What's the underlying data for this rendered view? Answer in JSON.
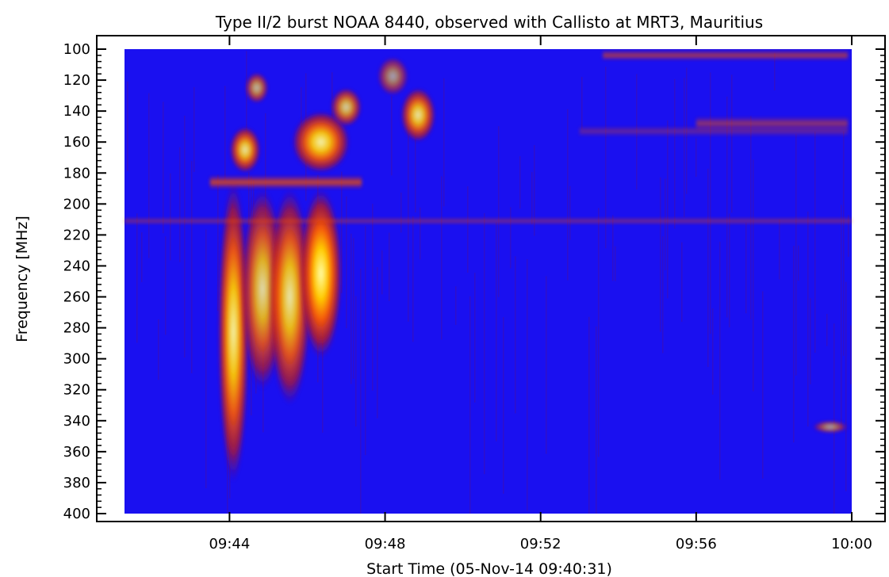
{
  "chart_data": {
    "type": "heatmap",
    "title": "Type II/2 burst NOAA 8440, observed with Callisto at MRT3, Mauritius",
    "xlabel": "Start Time (05-Nov-14 09:40:31)",
    "ylabel": "Frequency [MHz]",
    "x_range_minutes": [
      1.3,
      20.0
    ],
    "x_ticks": [
      {
        "minute": 4,
        "label": "09:44"
      },
      {
        "minute": 8,
        "label": "09:48"
      },
      {
        "minute": 12,
        "label": "09:52"
      },
      {
        "minute": 16,
        "label": "09:56"
      },
      {
        "minute": 20,
        "label": "10:00"
      }
    ],
    "ylim": [
      100,
      400
    ],
    "y_inverted": true,
    "y_ticks": [
      {
        "value": 100,
        "label": "100"
      },
      {
        "value": 120,
        "label": "120"
      },
      {
        "value": 140,
        "label": "140"
      },
      {
        "value": 160,
        "label": "160"
      },
      {
        "value": 180,
        "label": "180"
      },
      {
        "value": 200,
        "label": "200"
      },
      {
        "value": 220,
        "label": "220"
      },
      {
        "value": 240,
        "label": "240"
      },
      {
        "value": 260,
        "label": "260"
      },
      {
        "value": 280,
        "label": "280"
      },
      {
        "value": 300,
        "label": "300"
      },
      {
        "value": 320,
        "label": "320"
      },
      {
        "value": 340,
        "label": "340"
      },
      {
        "value": 360,
        "label": "360"
      },
      {
        "value": 380,
        "label": "380"
      },
      {
        "value": 400,
        "label": "400"
      }
    ],
    "colormap": [
      "#1a10f0",
      "#6a0f6a",
      "#c01818",
      "#ff5a00",
      "#ffcc00",
      "#ffffb0"
    ],
    "background_color": "#1a10f0",
    "bright_features": [
      {
        "name": "main burst lane 1",
        "t1": 3.7,
        "t2": 4.5,
        "f1": 185,
        "f2": 380,
        "intensity": 0.95
      },
      {
        "name": "main burst lane 2",
        "t1": 4.3,
        "t2": 5.4,
        "f1": 190,
        "f2": 320,
        "intensity": 0.85
      },
      {
        "name": "main burst lane 3",
        "t1": 5.0,
        "t2": 6.1,
        "f1": 190,
        "f2": 330,
        "intensity": 0.9
      },
      {
        "name": "main burst lane 4",
        "t1": 5.8,
        "t2": 6.9,
        "f1": 190,
        "f2": 300,
        "intensity": 1.0
      },
      {
        "name": "horizontal bar 185 MHz",
        "t1": 3.5,
        "t2": 7.4,
        "f1": 182,
        "f2": 190,
        "intensity": 0.8
      },
      {
        "name": "upper patch 1",
        "t1": 4.0,
        "t2": 4.8,
        "f1": 150,
        "f2": 180,
        "intensity": 0.9
      },
      {
        "name": "upper patch 2",
        "t1": 4.4,
        "t2": 5.0,
        "f1": 115,
        "f2": 135,
        "intensity": 0.7
      },
      {
        "name": "upper patch 3",
        "t1": 5.6,
        "t2": 7.1,
        "f1": 140,
        "f2": 180,
        "intensity": 0.95
      },
      {
        "name": "upper patch 4",
        "t1": 6.6,
        "t2": 7.4,
        "f1": 125,
        "f2": 150,
        "intensity": 0.8
      },
      {
        "name": "upper patch 5",
        "t1": 8.4,
        "t2": 9.3,
        "f1": 125,
        "f2": 160,
        "intensity": 0.9
      },
      {
        "name": "upper patch 6",
        "t1": 7.8,
        "t2": 8.6,
        "f1": 105,
        "f2": 130,
        "intensity": 0.6
      },
      {
        "name": "band 100 MHz",
        "t1": 13.6,
        "t2": 19.9,
        "f1": 101,
        "f2": 107,
        "intensity": 0.65
      },
      {
        "name": "band 148 MHz",
        "t1": 16.0,
        "t2": 19.9,
        "f1": 144,
        "f2": 152,
        "intensity": 0.55
      },
      {
        "name": "weak band 152 MHz",
        "t1": 13.0,
        "t2": 19.9,
        "f1": 150,
        "f2": 156,
        "intensity": 0.35
      },
      {
        "name": "interference line 210 MHz",
        "t1": 1.3,
        "t2": 20.0,
        "f1": 209,
        "f2": 213,
        "intensity": 0.45
      },
      {
        "name": "patch 345 MHz",
        "t1": 19.0,
        "t2": 19.9,
        "f1": 340,
        "f2": 348,
        "intensity": 0.6
      }
    ]
  }
}
